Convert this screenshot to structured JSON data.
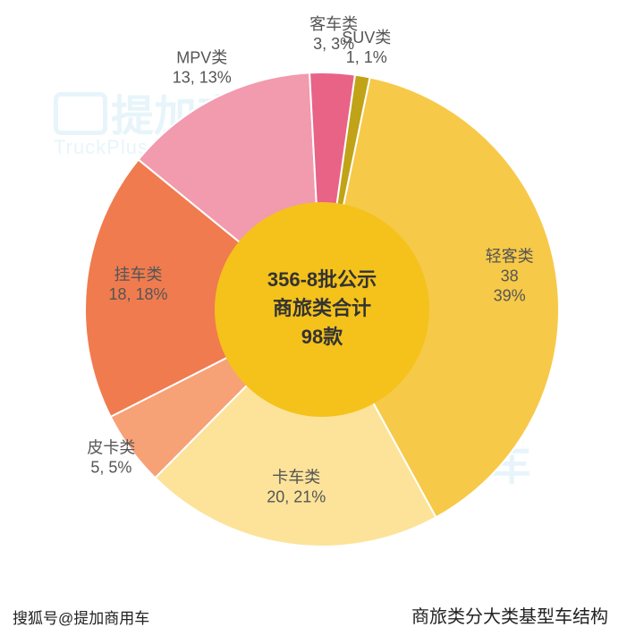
{
  "chart": {
    "type": "pie",
    "outer_radius": 265,
    "inner_radius": 120,
    "start_angle_deg": -82,
    "background_color": "#ffffff",
    "center_fill": "#f4c21b",
    "center_text": [
      "356-8批公示",
      "商旅类合计",
      "98款"
    ],
    "center_fontsize": 22,
    "label_fontsize": 18,
    "label_color": "#555555",
    "slices": [
      {
        "key": "suv",
        "name": "SUV类",
        "value": 1,
        "pct": 1,
        "color": "#c1a317",
        "label_lines": [
          "SUV类",
          "1, 1%"
        ],
        "label_r": 1.1
      },
      {
        "key": "qingke",
        "name": "轻客类",
        "value": 38,
        "pct": 39,
        "color": "#f7c948",
        "label_lines": [
          "轻客类",
          "38",
          "39%"
        ],
        "label_r": 0.8
      },
      {
        "key": "kache",
        "name": "卡车类",
        "value": 20,
        "pct": 21,
        "color": "#fce399",
        "label_lines": [
          "卡车类",
          "20, 21%"
        ],
        "label_r": 0.78
      },
      {
        "key": "pika",
        "name": "皮卡类",
        "value": 5,
        "pct": 5,
        "color": "#f7a176",
        "label_lines": [
          "皮卡类",
          "5, 5%"
        ],
        "label_r": 1.1
      },
      {
        "key": "guache",
        "name": "挂车类",
        "value": 18,
        "pct": 18,
        "color": "#f07b4f",
        "label_lines": [
          "挂车类",
          "18, 18%"
        ],
        "label_r": 0.78
      },
      {
        "key": "mpv",
        "name": "MPV类",
        "value": 13,
        "pct": 13,
        "color": "#f29aae",
        "label_lines": [
          "MPV类",
          "13, 13%"
        ],
        "label_r": 1.12
      },
      {
        "key": "keche",
        "name": "客车类",
        "value": 3,
        "pct": 3,
        "color": "#e96387",
        "label_lines": [
          "客车类",
          "3, 3%"
        ],
        "label_r": 1.14
      }
    ]
  },
  "subtitle": "商旅类分大类基型车结构",
  "source_label": "搜狐号@提加商用车",
  "watermark": {
    "main": "提加商用车",
    "sub": "TruckPlus CV studio"
  }
}
